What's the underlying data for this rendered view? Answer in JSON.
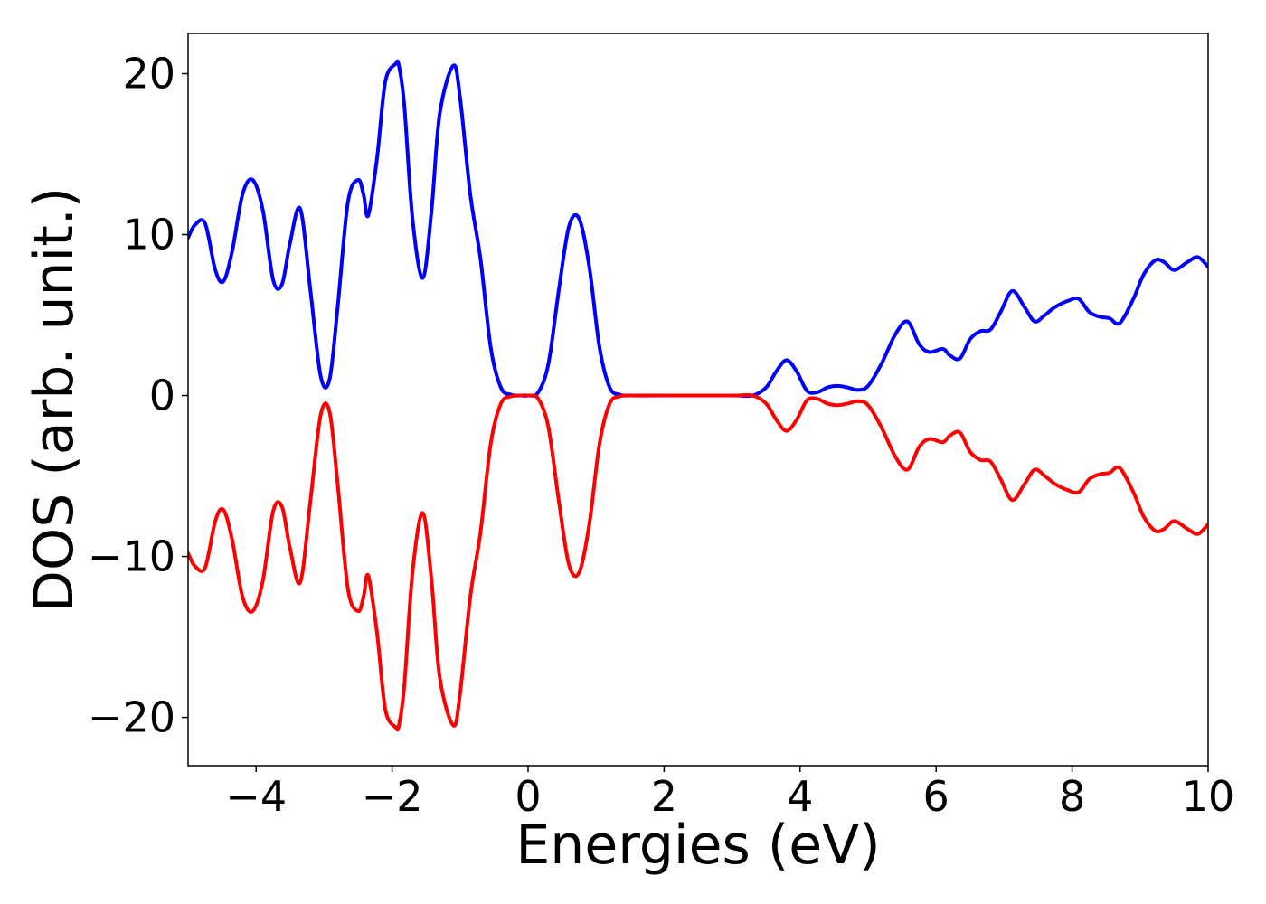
{
  "chart_data": {
    "type": "line",
    "title": "",
    "xlabel": "Energies (eV)",
    "ylabel": "DOS (arb. unit.)",
    "xlim": [
      -5,
      10
    ],
    "ylim": [
      -23,
      22.5
    ],
    "xticks": [
      -4,
      -2,
      0,
      2,
      4,
      6,
      8,
      10
    ],
    "yticks": [
      -20,
      -10,
      0,
      10,
      20
    ],
    "grid": false,
    "legend": "none",
    "series": [
      {
        "color": "#0000ff",
        "x": [
          -5.0,
          -4.9,
          -4.75,
          -4.6,
          -4.48,
          -4.35,
          -4.2,
          -4.05,
          -3.9,
          -3.75,
          -3.62,
          -3.5,
          -3.35,
          -3.2,
          -3.05,
          -2.92,
          -2.8,
          -2.65,
          -2.5,
          -2.42,
          -2.35,
          -2.22,
          -2.1,
          -1.95,
          -1.9,
          -1.82,
          -1.7,
          -1.55,
          -1.42,
          -1.3,
          -1.1,
          -1.0,
          -0.85,
          -0.7,
          -0.55,
          -0.4,
          -0.25,
          -0.1,
          0.0,
          0.15,
          0.3,
          0.45,
          0.6,
          0.75,
          0.9,
          1.05,
          1.2,
          1.35,
          1.5,
          2.0,
          3.0,
          3.3,
          3.5,
          3.65,
          3.8,
          3.95,
          4.1,
          4.25,
          4.4,
          4.55,
          4.7,
          4.85,
          5.0,
          5.2,
          5.4,
          5.58,
          5.75,
          5.9,
          6.1,
          6.2,
          6.35,
          6.5,
          6.65,
          6.8,
          6.95,
          7.12,
          7.3,
          7.45,
          7.6,
          7.75,
          7.95,
          8.1,
          8.25,
          8.4,
          8.55,
          8.7,
          8.9,
          9.05,
          9.22,
          9.35,
          9.5,
          9.7,
          9.85,
          10.0
        ],
        "y": [
          9.8,
          10.6,
          10.7,
          7.8,
          7.1,
          9.0,
          12.5,
          13.4,
          11.5,
          7.2,
          6.9,
          9.5,
          11.6,
          6.5,
          1.2,
          1.0,
          5.5,
          12.0,
          13.4,
          12.5,
          11.2,
          14.8,
          19.5,
          20.6,
          20.5,
          18.0,
          11.0,
          7.3,
          11.5,
          17.5,
          20.5,
          18.5,
          12.5,
          8.5,
          3.0,
          0.5,
          0.05,
          0.0,
          0.0,
          0.2,
          2.0,
          6.5,
          10.5,
          11.0,
          8.0,
          3.0,
          0.5,
          0.05,
          0.0,
          0.0,
          0.0,
          0.0,
          0.5,
          1.5,
          2.2,
          1.5,
          0.3,
          0.2,
          0.5,
          0.6,
          0.5,
          0.35,
          0.6,
          2.0,
          3.8,
          4.6,
          3.2,
          2.7,
          2.9,
          2.5,
          2.3,
          3.5,
          4.0,
          4.1,
          5.2,
          6.5,
          5.5,
          4.6,
          5.0,
          5.5,
          5.9,
          6.0,
          5.2,
          4.9,
          4.8,
          4.5,
          6.0,
          7.5,
          8.4,
          8.3,
          7.8,
          8.3,
          8.6,
          8.0
        ]
      },
      {
        "color": "#ff0000",
        "x": [
          -5.0,
          -4.9,
          -4.75,
          -4.6,
          -4.48,
          -4.35,
          -4.2,
          -4.05,
          -3.9,
          -3.75,
          -3.62,
          -3.5,
          -3.35,
          -3.2,
          -3.05,
          -2.92,
          -2.8,
          -2.65,
          -2.5,
          -2.42,
          -2.35,
          -2.22,
          -2.1,
          -1.95,
          -1.9,
          -1.82,
          -1.7,
          -1.55,
          -1.42,
          -1.3,
          -1.1,
          -1.0,
          -0.85,
          -0.7,
          -0.55,
          -0.4,
          -0.25,
          -0.1,
          0.0,
          0.15,
          0.3,
          0.45,
          0.6,
          0.75,
          0.9,
          1.05,
          1.2,
          1.35,
          1.5,
          2.0,
          3.0,
          3.3,
          3.5,
          3.65,
          3.8,
          3.95,
          4.1,
          4.25,
          4.4,
          4.55,
          4.7,
          4.85,
          5.0,
          5.2,
          5.4,
          5.58,
          5.75,
          5.9,
          6.1,
          6.2,
          6.35,
          6.5,
          6.65,
          6.8,
          6.95,
          7.12,
          7.3,
          7.45,
          7.6,
          7.75,
          7.95,
          8.1,
          8.25,
          8.4,
          8.55,
          8.7,
          8.9,
          9.05,
          9.22,
          9.35,
          9.5,
          9.7,
          9.85,
          10.0
        ],
        "y": [
          -9.8,
          -10.6,
          -10.7,
          -7.8,
          -7.1,
          -9.0,
          -12.5,
          -13.4,
          -11.5,
          -7.2,
          -6.9,
          -9.5,
          -11.6,
          -6.5,
          -1.2,
          -1.0,
          -5.5,
          -12.0,
          -13.4,
          -12.5,
          -11.2,
          -14.8,
          -19.5,
          -20.6,
          -20.5,
          -18.0,
          -11.0,
          -7.3,
          -11.5,
          -17.5,
          -20.5,
          -18.5,
          -12.5,
          -8.5,
          -3.0,
          -0.5,
          -0.05,
          0.0,
          0.0,
          -0.2,
          -2.0,
          -6.5,
          -10.5,
          -11.0,
          -8.0,
          -3.0,
          -0.5,
          -0.05,
          0.0,
          0.0,
          0.0,
          0.0,
          -0.5,
          -1.5,
          -2.2,
          -1.5,
          -0.3,
          -0.2,
          -0.5,
          -0.6,
          -0.5,
          -0.35,
          -0.6,
          -2.0,
          -3.8,
          -4.6,
          -3.2,
          -2.7,
          -2.9,
          -2.5,
          -2.3,
          -3.5,
          -4.0,
          -4.1,
          -5.2,
          -6.5,
          -5.5,
          -4.6,
          -5.0,
          -5.5,
          -5.9,
          -6.0,
          -5.2,
          -4.9,
          -4.8,
          -4.5,
          -6.0,
          -7.5,
          -8.4,
          -8.3,
          -7.8,
          -8.3,
          -8.6,
          -8.0
        ]
      }
    ]
  }
}
